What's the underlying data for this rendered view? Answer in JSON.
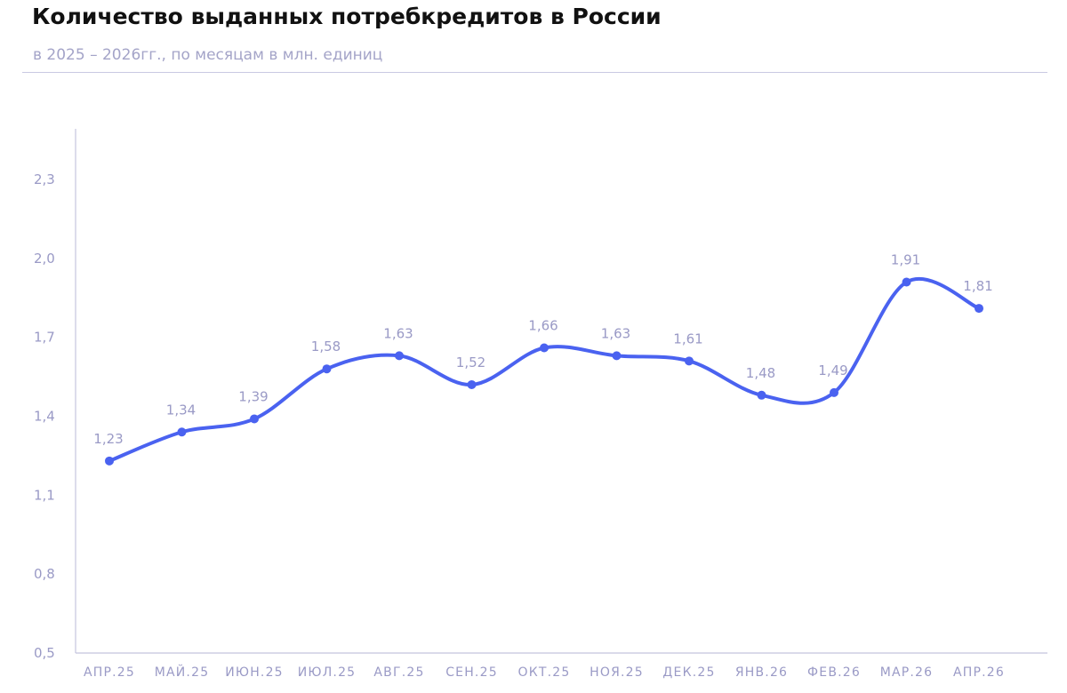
{
  "header": {
    "title": "Количество выданных потребкредитов в России",
    "subtitle": "в 2025 – 2026гг., по месяцам в млн. единиц"
  },
  "colors": {
    "line": "#4a62f0",
    "axis": "#c4c4de",
    "label": "#9a9ac6",
    "title": "#111111"
  },
  "chart_data": {
    "type": "line",
    "categories": [
      "АПР.25",
      "МАЙ.25",
      "ИЮН.25",
      "ИЮЛ.25",
      "АВГ.25",
      "СЕН.25",
      "ОКТ.25",
      "НОЯ.25",
      "ДЕК.25",
      "ЯНВ.26",
      "ФЕВ.26",
      "МАР.26",
      "АПР.26"
    ],
    "series": [
      {
        "values": [
          1.23,
          1.34,
          1.39,
          1.58,
          1.63,
          1.52,
          1.66,
          1.63,
          1.61,
          1.48,
          1.49,
          1.91,
          1.81
        ],
        "labels": [
          "1,23",
          "1,34",
          "1,39",
          "1,58",
          "1,63",
          "1,52",
          "1,66",
          "1,63",
          "1,61",
          "1,48",
          "1,49",
          "1,91",
          "1,81"
        ]
      }
    ],
    "ylim": [
      0.5,
      2.3
    ],
    "yticks": [
      0.5,
      0.8,
      1.1,
      1.4,
      1.7,
      2.0,
      2.3
    ],
    "ytick_labels": [
      "0,5",
      "0,8",
      "1,1",
      "1,4",
      "1,7",
      "2,0",
      "2,3"
    ],
    "smooth": true,
    "grid": false,
    "legend": "none"
  }
}
